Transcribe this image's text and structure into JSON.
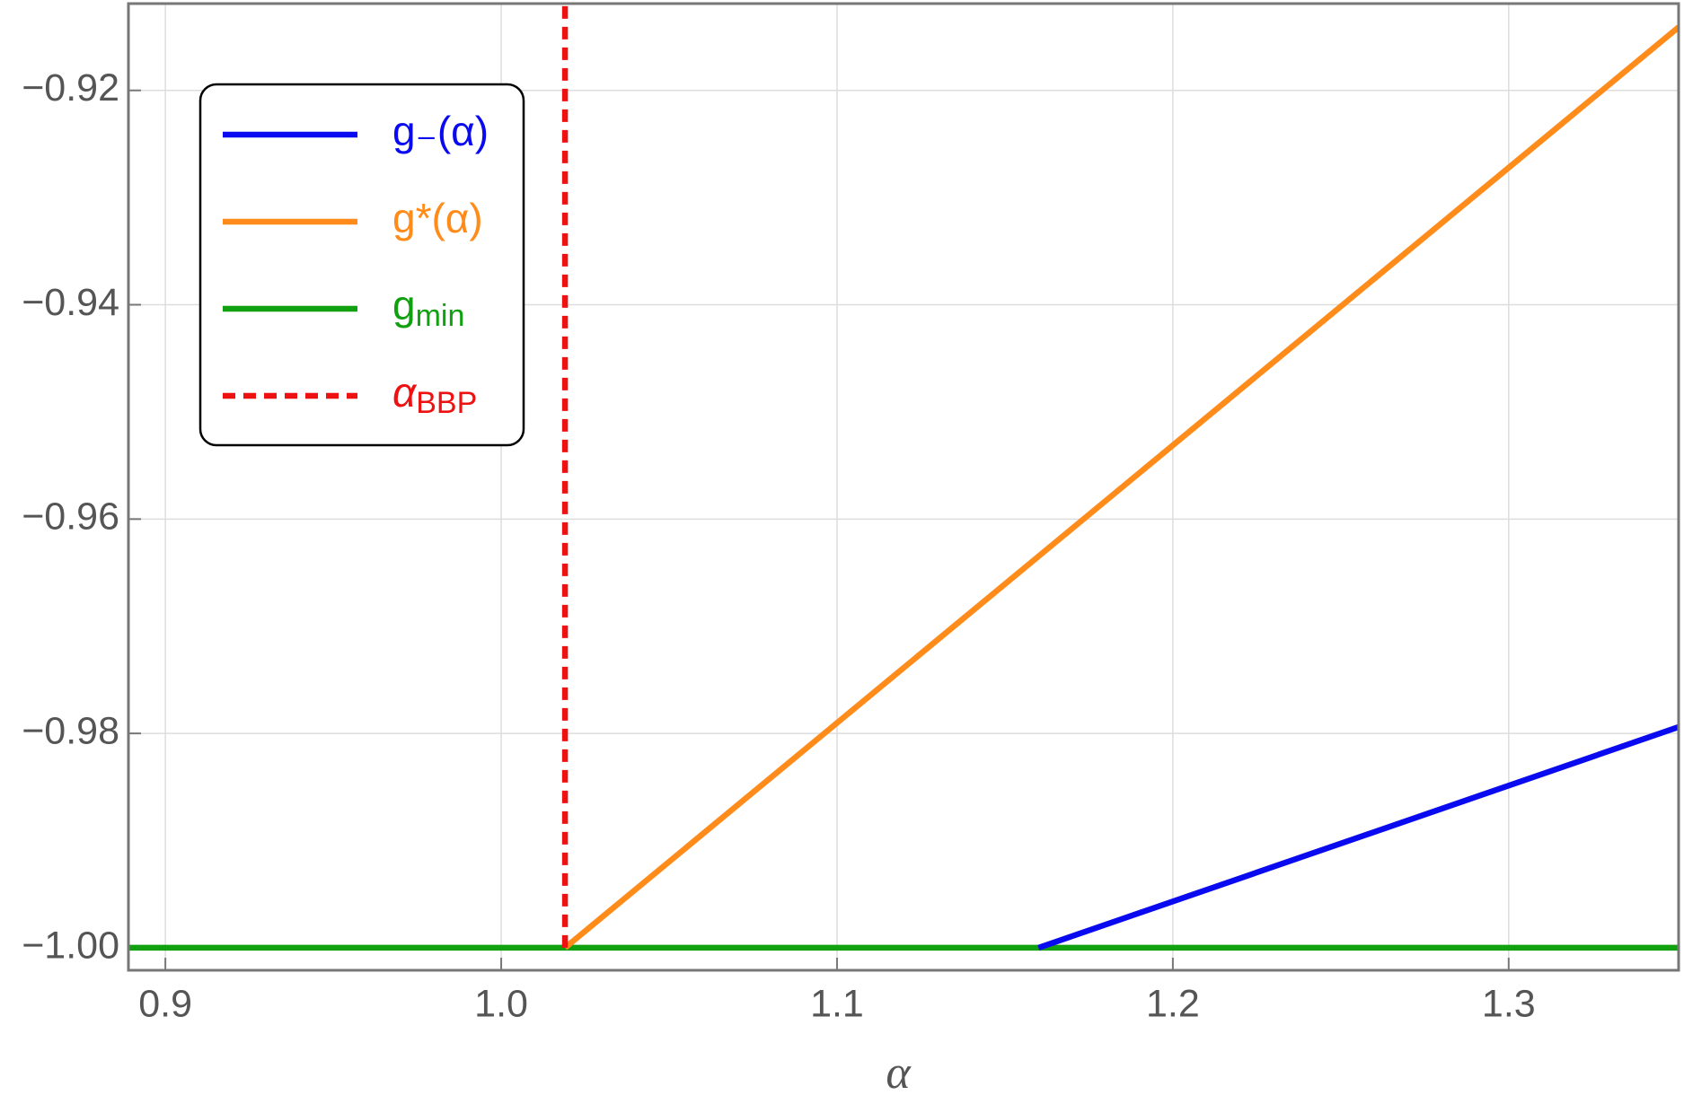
{
  "chart_data": {
    "type": "line",
    "x_label": "α",
    "xlim": [
      0.889,
      1.3506
    ],
    "ylim": [
      -1.0021,
      -0.9119
    ],
    "xticks": [
      0.9,
      {
        "value": 1.0,
        "label": "1.0"
      },
      1.1,
      1.2,
      1.3
    ],
    "yticks": [
      {
        "value": -1.0,
        "label": "−1.00"
      },
      {
        "value": -0.98,
        "label": "−0.98"
      },
      {
        "value": -0.96,
        "label": "−0.96"
      },
      {
        "value": -0.94,
        "label": "−0.94"
      },
      {
        "value": -0.92,
        "label": "−0.92"
      }
    ],
    "grid": true,
    "legend": "upper left",
    "series": [
      {
        "name": "g₋(α)",
        "color": "#0a0af0",
        "x": [
          1.16,
          1.3506
        ],
        "values": [
          -1.0,
          -0.9794
        ]
      },
      {
        "name": "g*(α)",
        "color": "#ff8c1a",
        "x": [
          1.019,
          1.3506
        ],
        "values": [
          -1.0,
          -0.9141
        ]
      },
      {
        "name": "gmin",
        "color": "#10a010",
        "x": [
          0.889,
          1.3506
        ],
        "values": [
          -1.0,
          -1.0
        ]
      },
      {
        "name": "αBBP",
        "color": "#ee1111",
        "dashed": true,
        "x": [
          1.019,
          1.019
        ],
        "values": [
          -1.0,
          -0.9119
        ]
      }
    ]
  }
}
